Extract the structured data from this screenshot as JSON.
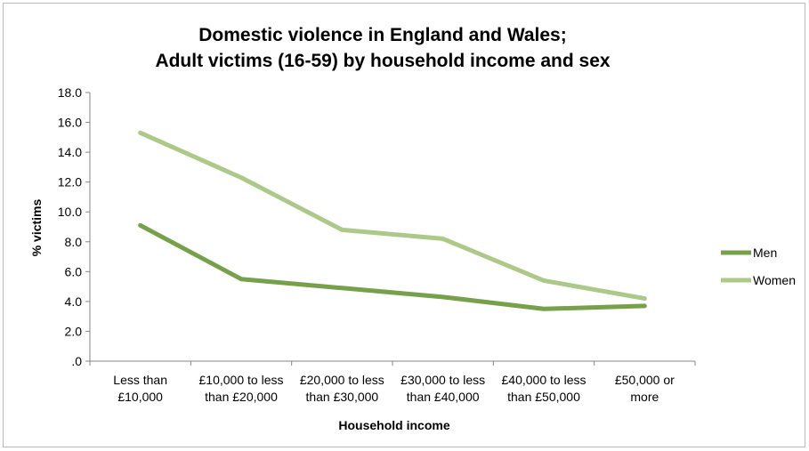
{
  "chart_data": {
    "type": "line",
    "title_lines": [
      "Domestic violence in England and Wales;",
      "Adult victims (16-59) by household income and sex"
    ],
    "xlabel": "Household income",
    "ylabel": "% victims",
    "categories": [
      [
        "Less than",
        "£10,000"
      ],
      [
        "£10,000 to less",
        "than £20,000"
      ],
      [
        "£20,000 to less",
        "than £30,000"
      ],
      [
        "£30,000 to less",
        "than £40,000"
      ],
      [
        "£40,000 to less",
        "than £50,000"
      ],
      [
        "£50,000 or",
        "more"
      ]
    ],
    "ylim": [
      0,
      18
    ],
    "yticks": [
      0,
      2,
      4,
      6,
      8,
      10,
      12,
      14,
      16,
      18
    ],
    "ytick_labels": [
      ".0",
      "2.0",
      "4.0",
      "6.0",
      "8.0",
      "10.0",
      "12.0",
      "14.0",
      "16.0",
      "18.0"
    ],
    "series": [
      {
        "name": "Men",
        "color": "#77a04a",
        "values": [
          9.1,
          5.5,
          4.9,
          4.3,
          3.5,
          3.7
        ]
      },
      {
        "name": "Women",
        "color": "#acc98a",
        "values": [
          15.3,
          12.3,
          8.8,
          8.2,
          5.4,
          4.2
        ]
      }
    ],
    "legend_position": "right",
    "grid": false
  }
}
